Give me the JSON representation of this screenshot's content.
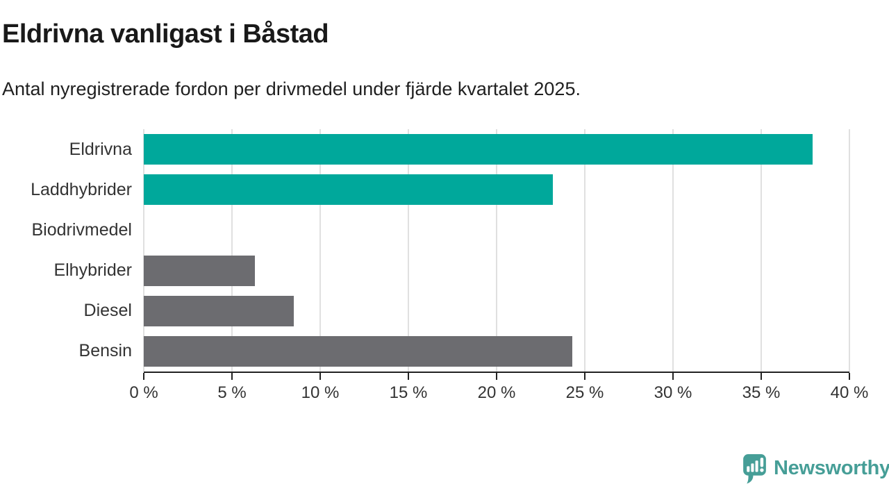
{
  "chart_data": {
    "type": "bar",
    "orientation": "horizontal",
    "title": "Eldrivna vanligast i Båstad",
    "subtitle": "Antal nyregistrerade fordon per drivmedel under fjärde kvartalet 2025.",
    "categories": [
      "Eldrivna",
      "Laddhybrider",
      "Biodrivmedel",
      "Elhybrider",
      "Diesel",
      "Bensin"
    ],
    "values": [
      37.9,
      23.2,
      0,
      6.3,
      8.5,
      24.3
    ],
    "unit": "%",
    "bar_colors": [
      "#00a89b",
      "#00a89b",
      "#6c6c70",
      "#6c6c70",
      "#6c6c70",
      "#6c6c70"
    ],
    "xlabel": "",
    "ylabel": "",
    "xlim": [
      0,
      40
    ],
    "x_ticks": [
      0,
      5,
      10,
      15,
      20,
      25,
      30,
      35,
      40
    ],
    "x_tick_labels": [
      "0 %",
      "5 %",
      "10 %",
      "15 %",
      "20 %",
      "25 %",
      "30 %",
      "35 %",
      "40 %"
    ],
    "grid": "vertical",
    "legend": "none"
  },
  "colors": {
    "highlight_teal": "#00a89b",
    "neutral_gray": "#6c6c70",
    "gridline": "#e0e0e0",
    "axis": "#222222",
    "text_dark": "#191919",
    "text_label": "#333333"
  },
  "branding": {
    "name": "Newsworthy",
    "color": "#469e97",
    "icon": "bar-chart-speech-bubble"
  }
}
